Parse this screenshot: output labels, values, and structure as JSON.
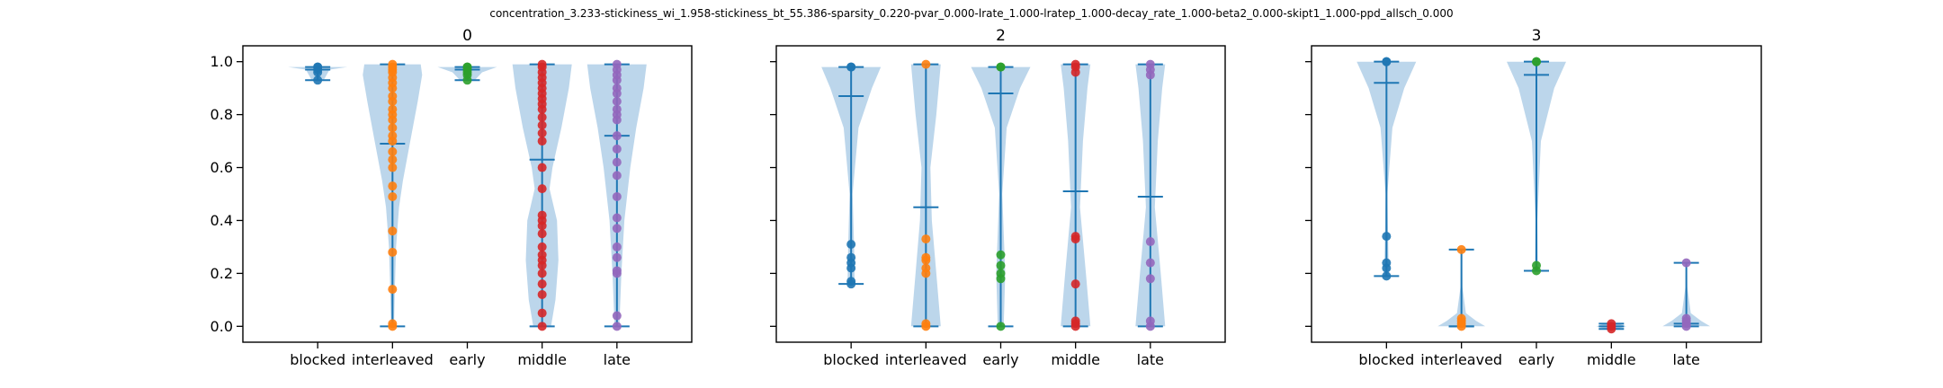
{
  "suptitle": "concentration_3.233-stickiness_wi_1.958-stickiness_bt_55.386-sparsity_0.220-pvar_0.000-lrate_1.000-lratep_1.000-decay_rate_1.000-beta2_0.000-skipt1_1.000-ppd_allsch_0.000",
  "colors": {
    "violin_fill": "#a6c8e4",
    "stat_line": "#1f77b4",
    "series": [
      "#1f77b4",
      "#ff7f0e",
      "#2ca02c",
      "#d62728",
      "#9467bd"
    ]
  },
  "chart_data": [
    {
      "type": "violin",
      "title": "0",
      "categories": [
        "blocked",
        "interleaved",
        "early",
        "middle",
        "late"
      ],
      "ylim": [
        -0.06,
        1.06
      ],
      "yticks": [
        "0.0",
        "0.2",
        "0.4",
        "0.6",
        "0.8",
        "1.0"
      ],
      "shared_y": true,
      "show_ytick_labels": true,
      "series": [
        {
          "min": 0.93,
          "max": 0.98,
          "mean": 0.97,
          "points": [
            0.93,
            0.96,
            0.97,
            0.98,
            0.98
          ],
          "density": [
            [
              0.93,
              0.2
            ],
            [
              0.97,
              0.4
            ],
            [
              0.98,
              1.0
            ]
          ]
        },
        {
          "min": 0.0,
          "max": 0.99,
          "mean": 0.69,
          "points": [
            0.0,
            0.01,
            0.14,
            0.28,
            0.36,
            0.49,
            0.53,
            0.6,
            0.63,
            0.66,
            0.7,
            0.72,
            0.75,
            0.78,
            0.8,
            0.82,
            0.85,
            0.87,
            0.9,
            0.92,
            0.94,
            0.96,
            0.97,
            0.98,
            0.99
          ],
          "density": [
            [
              0.0,
              0.05
            ],
            [
              0.15,
              0.08
            ],
            [
              0.3,
              0.12
            ],
            [
              0.45,
              0.22
            ],
            [
              0.55,
              0.35
            ],
            [
              0.7,
              0.6
            ],
            [
              0.85,
              0.85
            ],
            [
              0.95,
              1.0
            ],
            [
              0.99,
              0.95
            ]
          ]
        },
        {
          "min": 0.93,
          "max": 0.98,
          "mean": 0.97,
          "points": [
            0.93,
            0.95,
            0.96,
            0.97,
            0.98,
            0.98
          ],
          "density": [
            [
              0.93,
              0.25
            ],
            [
              0.96,
              0.5
            ],
            [
              0.98,
              1.0
            ]
          ]
        },
        {
          "min": 0.0,
          "max": 0.99,
          "mean": 0.63,
          "points": [
            0.0,
            0.05,
            0.12,
            0.16,
            0.2,
            0.23,
            0.25,
            0.27,
            0.3,
            0.35,
            0.38,
            0.4,
            0.42,
            0.52,
            0.6,
            0.7,
            0.73,
            0.76,
            0.79,
            0.82,
            0.84,
            0.86,
            0.88,
            0.9,
            0.92,
            0.94,
            0.96,
            0.98,
            0.99
          ],
          "density": [
            [
              0.0,
              0.3
            ],
            [
              0.1,
              0.45
            ],
            [
              0.25,
              0.55
            ],
            [
              0.4,
              0.5
            ],
            [
              0.52,
              0.25
            ],
            [
              0.6,
              0.35
            ],
            [
              0.75,
              0.65
            ],
            [
              0.9,
              0.9
            ],
            [
              0.99,
              1.0
            ]
          ]
        },
        {
          "min": 0.0,
          "max": 0.99,
          "mean": 0.72,
          "points": [
            0.0,
            0.04,
            0.2,
            0.21,
            0.26,
            0.3,
            0.37,
            0.41,
            0.49,
            0.57,
            0.62,
            0.67,
            0.72,
            0.78,
            0.8,
            0.82,
            0.85,
            0.88,
            0.9,
            0.93,
            0.95,
            0.97,
            0.99
          ],
          "density": [
            [
              0.0,
              0.08
            ],
            [
              0.2,
              0.15
            ],
            [
              0.4,
              0.25
            ],
            [
              0.6,
              0.45
            ],
            [
              0.75,
              0.65
            ],
            [
              0.9,
              0.9
            ],
            [
              0.99,
              1.0
            ]
          ]
        }
      ]
    },
    {
      "type": "violin",
      "title": "2",
      "categories": [
        "blocked",
        "interleaved",
        "early",
        "middle",
        "late"
      ],
      "ylim": [
        -0.06,
        1.06
      ],
      "yticks": [
        "0.0",
        "0.2",
        "0.4",
        "0.6",
        "0.8",
        "1.0"
      ],
      "shared_y": true,
      "show_ytick_labels": false,
      "series": [
        {
          "min": 0.16,
          "max": 0.98,
          "mean": 0.87,
          "points": [
            0.16,
            0.17,
            0.22,
            0.24,
            0.26,
            0.31,
            0.98,
            0.98
          ],
          "density": [
            [
              0.16,
              0.12
            ],
            [
              0.3,
              0.1
            ],
            [
              0.5,
              0.05
            ],
            [
              0.75,
              0.25
            ],
            [
              0.9,
              0.7
            ],
            [
              0.98,
              1.0
            ]
          ]
        },
        {
          "min": 0.0,
          "max": 0.99,
          "mean": 0.45,
          "points": [
            0.0,
            0.01,
            0.2,
            0.22,
            0.25,
            0.26,
            0.33,
            0.99
          ],
          "density": [
            [
              0.0,
              0.5
            ],
            [
              0.2,
              0.35
            ],
            [
              0.4,
              0.2
            ],
            [
              0.6,
              0.15
            ],
            [
              0.8,
              0.35
            ],
            [
              0.99,
              0.5
            ]
          ]
        },
        {
          "min": 0.0,
          "max": 0.98,
          "mean": 0.88,
          "points": [
            0.0,
            0.18,
            0.2,
            0.23,
            0.27,
            0.98,
            0.98
          ],
          "density": [
            [
              0.0,
              0.1
            ],
            [
              0.2,
              0.15
            ],
            [
              0.5,
              0.05
            ],
            [
              0.75,
              0.2
            ],
            [
              0.9,
              0.65
            ],
            [
              0.98,
              1.0
            ]
          ]
        },
        {
          "min": 0.0,
          "max": 0.99,
          "mean": 0.51,
          "points": [
            0.0,
            0.01,
            0.02,
            0.16,
            0.33,
            0.34,
            0.96,
            0.98,
            0.99
          ],
          "density": [
            [
              0.0,
              0.5
            ],
            [
              0.2,
              0.35
            ],
            [
              0.45,
              0.15
            ],
            [
              0.7,
              0.25
            ],
            [
              0.9,
              0.4
            ],
            [
              0.99,
              0.5
            ]
          ]
        },
        {
          "min": 0.0,
          "max": 0.99,
          "mean": 0.49,
          "points": [
            0.0,
            0.02,
            0.18,
            0.24,
            0.32,
            0.95,
            0.97,
            0.99
          ],
          "density": [
            [
              0.0,
              0.5
            ],
            [
              0.2,
              0.35
            ],
            [
              0.45,
              0.15
            ],
            [
              0.7,
              0.25
            ],
            [
              0.9,
              0.4
            ],
            [
              0.99,
              0.5
            ]
          ]
        }
      ]
    },
    {
      "type": "violin",
      "title": "3",
      "categories": [
        "blocked",
        "interleaved",
        "early",
        "middle",
        "late"
      ],
      "ylim": [
        -0.06,
        1.06
      ],
      "yticks": [
        "0.0",
        "0.2",
        "0.4",
        "0.6",
        "0.8",
        "1.0"
      ],
      "shared_y": true,
      "show_ytick_labels": false,
      "series": [
        {
          "min": 0.19,
          "max": 1.0,
          "mean": 0.92,
          "points": [
            0.19,
            0.22,
            0.24,
            0.34,
            1.0,
            1.0
          ],
          "density": [
            [
              0.19,
              0.08
            ],
            [
              0.3,
              0.06
            ],
            [
              0.5,
              0.03
            ],
            [
              0.75,
              0.2
            ],
            [
              0.9,
              0.6
            ],
            [
              1.0,
              1.0
            ]
          ]
        },
        {
          "min": 0.0,
          "max": 0.29,
          "mean": 0.0,
          "points": [
            0.0,
            0.01,
            0.02,
            0.03,
            0.29
          ],
          "density": [
            [
              0.0,
              0.8
            ],
            [
              0.02,
              0.5
            ],
            [
              0.05,
              0.15
            ],
            [
              0.15,
              0.03
            ],
            [
              0.29,
              0.02
            ]
          ]
        },
        {
          "min": 0.21,
          "max": 1.0,
          "mean": 0.95,
          "points": [
            0.21,
            0.23,
            1.0,
            1.0
          ],
          "density": [
            [
              0.21,
              0.05
            ],
            [
              0.4,
              0.03
            ],
            [
              0.7,
              0.15
            ],
            [
              0.9,
              0.6
            ],
            [
              1.0,
              1.0
            ]
          ]
        },
        {
          "min": -0.01,
          "max": 0.01,
          "mean": 0.0,
          "points": [
            -0.01,
            0.0,
            0.01
          ],
          "density": [
            [
              -0.01,
              0.2
            ],
            [
              0.0,
              0.5
            ],
            [
              0.01,
              0.2
            ]
          ]
        },
        {
          "min": 0.0,
          "max": 0.24,
          "mean": 0.01,
          "points": [
            0.0,
            0.01,
            0.02,
            0.03,
            0.24
          ],
          "density": [
            [
              0.0,
              0.8
            ],
            [
              0.02,
              0.5
            ],
            [
              0.05,
              0.15
            ],
            [
              0.15,
              0.03
            ],
            [
              0.24,
              0.02
            ]
          ]
        }
      ]
    }
  ]
}
